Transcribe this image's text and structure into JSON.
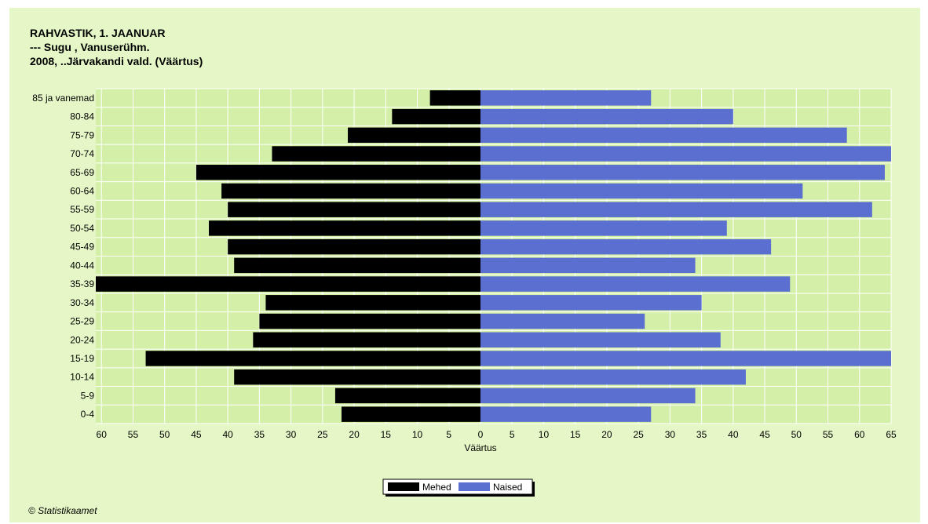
{
  "chart_data": {
    "type": "bar",
    "orientation": "horizontal-population-pyramid",
    "title_lines": [
      "RAHVASTIK, 1. JAANUAR",
      "--- Sugu , Vanuserühm.",
      "2008, ..Järvakandi vald. (Väärtus)"
    ],
    "xlabel": "Väärtus",
    "categories": [
      "85 ja vanemad",
      "80-84",
      "75-79",
      "70-74",
      "65-69",
      "60-64",
      "55-59",
      "50-54",
      "45-49",
      "40-44",
      "35-39",
      "30-34",
      "25-29",
      "20-24",
      "15-19",
      "10-14",
      "5-9",
      "0-4"
    ],
    "series": [
      {
        "name": "Mehed",
        "color": "#000000",
        "side": "left",
        "values": [
          8,
          14,
          21,
          33,
          45,
          41,
          40,
          43,
          40,
          39,
          61,
          34,
          35,
          36,
          53,
          39,
          23,
          22
        ]
      },
      {
        "name": "Naised",
        "color": "#5b6fd1",
        "side": "right",
        "values": [
          27,
          40,
          58,
          65,
          64,
          51,
          62,
          39,
          46,
          34,
          49,
          35,
          26,
          38,
          65,
          42,
          34,
          27
        ]
      }
    ],
    "left_ticks": [
      60,
      55,
      50,
      45,
      40,
      35,
      30,
      25,
      20,
      15,
      10,
      5,
      0
    ],
    "right_ticks": [
      5,
      10,
      15,
      20,
      25,
      30,
      35,
      40,
      45,
      50,
      55,
      60,
      65
    ],
    "xlim": [
      -61,
      65
    ],
    "grid": true,
    "legend_position": "bottom-center",
    "plot_background": "#d4f0a8",
    "grid_color": "#ffffff"
  },
  "footer": "© Statistikaamet"
}
